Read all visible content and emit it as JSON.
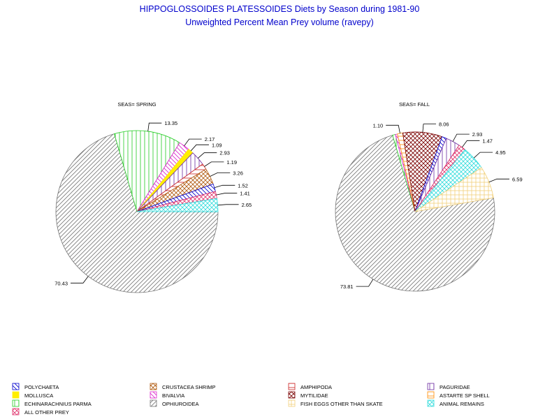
{
  "title": {
    "line1": "HIPPOGLOSSOIDES PLATESSOIDES Diets by Season during 1981-90",
    "line2": "Unweighted Percent Mean Prey volume (ravepy)"
  },
  "colors": {
    "title": "#0000cc",
    "text": "#000000",
    "leader": "#000000"
  },
  "chart_data": [
    {
      "type": "pie",
      "title": "SEAS= SPRING",
      "slices": [
        {
          "category": "OPHIUROIDEA",
          "value": 70.43,
          "label": "70.43"
        },
        {
          "category": "ECHINARACHNIUS PARMA",
          "value": 13.35,
          "label": "13.35"
        },
        {
          "category": "BIVALVIA",
          "value": 2.17,
          "label": "2.17"
        },
        {
          "category": "MOLLUSCA",
          "value": 1.09,
          "label": "1.09"
        },
        {
          "category": "PAGURIDAE",
          "value": 2.93,
          "label": "2.93"
        },
        {
          "category": "AMPHIPODA",
          "value": 1.19,
          "label": "1.19"
        },
        {
          "category": "CRUSTACEA SHRIMP",
          "value": 3.26,
          "label": "3.26"
        },
        {
          "category": "POLYCHAETA",
          "value": 1.52,
          "label": "1.52"
        },
        {
          "category": "ALL OTHER PREY",
          "value": 1.41,
          "label": "1.41"
        },
        {
          "category": "ANIMAL REMAINS",
          "value": 2.65,
          "label": "2.65"
        }
      ]
    },
    {
      "type": "pie",
      "title": "SEAS= FALL",
      "slices": [
        {
          "category": "OPHIUROIDEA",
          "value": 73.81,
          "label": "73.81"
        },
        {
          "category": "ECHINARACHNIUS PARMA",
          "value": 0.6,
          "label": ""
        },
        {
          "category": "BIVALVIA",
          "value": 0.4,
          "label": ""
        },
        {
          "category": "ASTARTE SP SHELL",
          "value": 1.1,
          "label": "1.10"
        },
        {
          "category": "MYTILIDAE",
          "value": 8.06,
          "label": "8.06"
        },
        {
          "category": "POLYCHAETA",
          "value": 0.9,
          "label": ""
        },
        {
          "category": "PAGURIDAE",
          "value": 2.93,
          "label": "2.93"
        },
        {
          "category": "ALL OTHER PREY",
          "value": 1.47,
          "label": "1.47"
        },
        {
          "category": "ANIMAL REMAINS",
          "value": 4.95,
          "label": "4.95"
        },
        {
          "category": "FISH EGGS OTHER THAN SKATE",
          "value": 6.59,
          "label": "6.59"
        }
      ]
    }
  ],
  "legend": [
    {
      "name": "POLYCHAETA",
      "color": "#0000cc",
      "pattern": "diag-back"
    },
    {
      "name": "CRUSTACEA SHRIMP",
      "color": "#b05a10",
      "pattern": "crosshatch"
    },
    {
      "name": "AMPHIPODA",
      "color": "#cc2222",
      "pattern": "horiz"
    },
    {
      "name": "PAGURIDAE",
      "color": "#6b2aa0",
      "pattern": "vert"
    },
    {
      "name": "MOLLUSCA",
      "color": "#ffee00",
      "pattern": "solid"
    },
    {
      "name": "BIVALVIA",
      "color": "#dd22cc",
      "pattern": "diag-back"
    },
    {
      "name": "MYTILIDAE",
      "color": "#7a0000",
      "pattern": "crosshatch"
    },
    {
      "name": "ASTARTE SP SHELL",
      "color": "#ff8a00",
      "pattern": "horiz"
    },
    {
      "name": "ECHINARACHNIUS PARMA",
      "color": "#22cc22",
      "pattern": "vert"
    },
    {
      "name": "OPHIUROIDEA",
      "color": "#777777",
      "pattern": "diag"
    },
    {
      "name": "FISH EGGS OTHER THAN SKATE",
      "color": "#f2d07a",
      "pattern": "grid"
    },
    {
      "name": "ANIMAL REMAINS",
      "color": "#33dddd",
      "pattern": "crosshatch"
    },
    {
      "name": "ALL OTHER PREY",
      "color": "#e0306a",
      "pattern": "crosshatch"
    }
  ]
}
